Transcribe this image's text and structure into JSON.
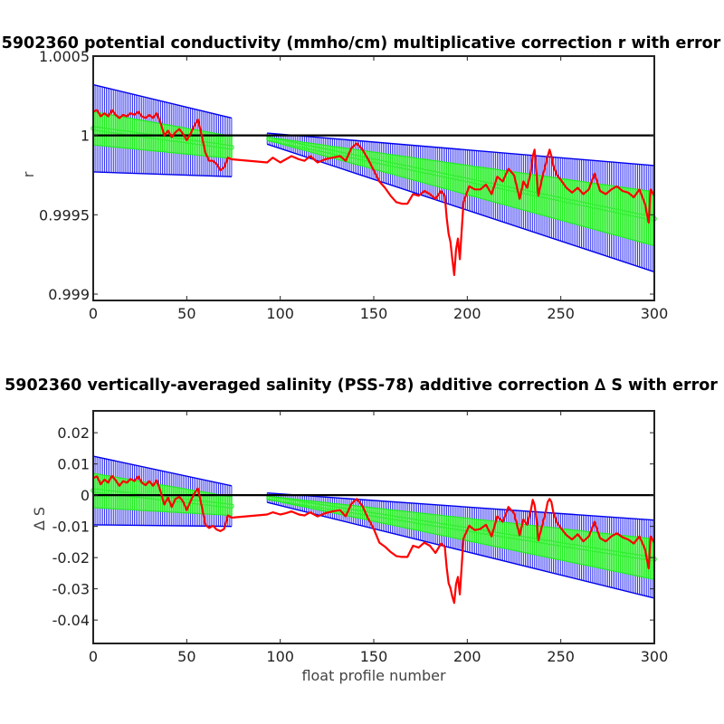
{
  "chart_data": [
    {
      "type": "line",
      "title": "5902360 potential conductivity (mmho/cm) multiplicative correction r with error",
      "xlabel": "",
      "ylabel": "r",
      "xlim": [
        0,
        300
      ],
      "ylim": [
        0.99896,
        1.0005
      ],
      "x_ticks": [
        "0",
        "50",
        "100",
        "150",
        "200",
        "250",
        "300"
      ],
      "y_ticks": [
        {
          "value": 1.0005,
          "label": "1.0005"
        },
        {
          "value": 1.0,
          "label": "1"
        },
        {
          "value": 0.9995,
          "label": "0.9995"
        },
        {
          "value": 0.999,
          "label": "0.999"
        }
      ],
      "reference_line": 1.0,
      "error_bands": [
        {
          "name": "outer",
          "color": "#0000ee",
          "segments": [
            {
              "x": [
                0,
                74
              ],
              "center": [
                1.000045,
                0.999925
              ],
              "halfwidth": [
                0.000275,
                0.000185
              ]
            },
            {
              "x": [
                93,
                300
              ],
              "center": [
                0.99998,
                0.999475
              ],
              "halfwidth": [
                3.5e-05,
                0.000335
              ]
            }
          ]
        },
        {
          "name": "inner",
          "color": "#22ee22",
          "segments": [
            {
              "x": [
                0,
                74
              ],
              "center": [
                1.000045,
                0.999925
              ],
              "halfwidth": [
                0.000105,
                7e-05
              ]
            },
            {
              "x": [
                93,
                300
              ],
              "center": [
                0.99998,
                0.999475
              ],
              "halfwidth": [
                1e-05,
                0.00017
              ]
            }
          ]
        }
      ],
      "series": [
        {
          "color": "#ff0000",
          "x": [
            0,
            2,
            4,
            6,
            8,
            10,
            12,
            14,
            16,
            18,
            20,
            22,
            24,
            26,
            28,
            30,
            32,
            34,
            36,
            38,
            40,
            42,
            44,
            46,
            48,
            50,
            52,
            54,
            56,
            58,
            60,
            62,
            64,
            66,
            68,
            70,
            72,
            74,
            93,
            96,
            100,
            103,
            106,
            110,
            113,
            116,
            120,
            124,
            128,
            132,
            135,
            138,
            141,
            144,
            147,
            150,
            153,
            156,
            159,
            162,
            165,
            168,
            171,
            174,
            177,
            180,
            183,
            186,
            188,
            189,
            190,
            191,
            192,
            193,
            194,
            195,
            196,
            198,
            201,
            204,
            207,
            210,
            213,
            216,
            219,
            222,
            225,
            228,
            230,
            232,
            234,
            235,
            236,
            237,
            238,
            240,
            242,
            243,
            244,
            245,
            246,
            248,
            250,
            253,
            256,
            259,
            262,
            265,
            268,
            271,
            274,
            277,
            280,
            283,
            286,
            289,
            292,
            295,
            297,
            298,
            300
          ],
          "y": [
            1.00015,
            1.00016,
            1.00012,
            1.00014,
            1.00012,
            1.00016,
            1.00013,
            1.00011,
            1.00013,
            1.00012,
            1.00014,
            1.00013,
            1.00015,
            1.00012,
            1.00011,
            1.00013,
            1.00011,
            1.00014,
            1.00008,
            1.0,
            1.00003,
            0.99999,
            1.00002,
            1.00004,
            1.00001,
            0.99997,
            1.00001,
            1.00006,
            1.0001,
            1.0,
            0.99989,
            0.99984,
            0.99984,
            0.99982,
            0.99978,
            0.9998,
            0.99986,
            0.99985,
            0.99983,
            0.99986,
            0.99983,
            0.99985,
            0.99987,
            0.99985,
            0.99984,
            0.99987,
            0.99983,
            0.99985,
            0.99986,
            0.99987,
            0.99984,
            0.99992,
            0.99995,
            0.99991,
            0.99985,
            0.99978,
            0.99971,
            0.99967,
            0.99962,
            0.99958,
            0.99957,
            0.99957,
            0.99963,
            0.99962,
            0.99965,
            0.99963,
            0.9996,
            0.99965,
            0.99962,
            0.99948,
            0.99938,
            0.99933,
            0.99922,
            0.99912,
            0.99928,
            0.99935,
            0.99922,
            0.99958,
            0.99968,
            0.99966,
            0.99966,
            0.99969,
            0.99963,
            0.99974,
            0.99971,
            0.99979,
            0.99975,
            0.9996,
            0.99971,
            0.99967,
            0.99977,
            0.99987,
            0.99991,
            0.99976,
            0.99962,
            0.99973,
            0.99982,
            0.99987,
            0.99991,
            0.99987,
            0.99981,
            0.99975,
            0.99972,
            0.99967,
            0.99964,
            0.99967,
            0.99963,
            0.99966,
            0.99976,
            0.99965,
            0.99963,
            0.99966,
            0.99968,
            0.99965,
            0.99964,
            0.99961,
            0.99966,
            0.99957,
            0.99945,
            0.99966,
            0.99962
          ]
        }
      ]
    },
    {
      "type": "line",
      "title": "5902360 vertically-averaged salinity (PSS-78) additive correction ∆ S with error",
      "xlabel": "float profile number",
      "ylabel": "∆ S",
      "xlim": [
        0,
        300
      ],
      "ylim": [
        -0.0475,
        0.027
      ],
      "x_ticks": [
        "0",
        "50",
        "100",
        "150",
        "200",
        "250",
        "300"
      ],
      "y_ticks": [
        {
          "value": 0.02,
          "label": "0.02"
        },
        {
          "value": 0.01,
          "label": "0.01"
        },
        {
          "value": 0.0,
          "label": "0"
        },
        {
          "value": -0.01,
          "label": "-0.01"
        },
        {
          "value": -0.02,
          "label": "-0.02"
        },
        {
          "value": -0.03,
          "label": "-0.03"
        },
        {
          "value": -0.04,
          "label": "-0.04"
        }
      ],
      "reference_line": 0.0,
      "error_bands": [
        {
          "name": "outer",
          "color": "#0000ee",
          "segments": [
            {
              "x": [
                0,
                74
              ],
              "center": [
                0.0015,
                -0.0035
              ],
              "halfwidth": [
                0.011,
                0.0065
              ]
            },
            {
              "x": [
                93,
                300
              ],
              "center": [
                -0.0008,
                -0.0205
              ],
              "halfwidth": [
                0.0015,
                0.0125
              ]
            }
          ]
        },
        {
          "name": "inner",
          "color": "#22ee22",
          "segments": [
            {
              "x": [
                0,
                74
              ],
              "center": [
                0.0015,
                -0.0035
              ],
              "halfwidth": [
                0.0055,
                0.003
              ]
            },
            {
              "x": [
                93,
                300
              ],
              "center": [
                -0.0008,
                -0.0205
              ],
              "halfwidth": [
                0.0005,
                0.0065
              ]
            }
          ]
        }
      ],
      "series": [
        {
          "color": "#ff0000",
          "x": [
            0,
            2,
            4,
            6,
            8,
            10,
            12,
            14,
            16,
            18,
            20,
            22,
            24,
            26,
            28,
            30,
            32,
            34,
            36,
            38,
            40,
            42,
            44,
            46,
            48,
            50,
            52,
            54,
            56,
            58,
            60,
            62,
            64,
            66,
            68,
            70,
            72,
            74,
            93,
            96,
            100,
            103,
            106,
            110,
            113,
            116,
            120,
            124,
            128,
            132,
            135,
            138,
            141,
            144,
            147,
            150,
            153,
            156,
            159,
            162,
            165,
            168,
            171,
            174,
            177,
            180,
            183,
            186,
            188,
            189,
            190,
            191,
            192,
            193,
            194,
            195,
            196,
            198,
            201,
            204,
            207,
            210,
            213,
            216,
            219,
            222,
            225,
            228,
            230,
            232,
            234,
            235,
            236,
            237,
            238,
            240,
            242,
            243,
            244,
            245,
            246,
            248,
            250,
            253,
            256,
            259,
            262,
            265,
            268,
            271,
            274,
            277,
            280,
            283,
            286,
            289,
            292,
            295,
            297,
            298,
            300
          ],
          "y": [
            0.0055,
            0.006,
            0.0035,
            0.005,
            0.004,
            0.0062,
            0.0048,
            0.003,
            0.0045,
            0.004,
            0.0052,
            0.0045,
            0.006,
            0.004,
            0.0032,
            0.0045,
            0.003,
            0.0048,
            0.0012,
            -0.003,
            -0.0008,
            -0.0038,
            -0.0012,
            -0.0005,
            -0.002,
            -0.0048,
            -0.002,
            0.0005,
            0.0022,
            -0.0035,
            -0.0095,
            -0.0105,
            -0.0098,
            -0.011,
            -0.0115,
            -0.0108,
            -0.0065,
            -0.0072,
            -0.0062,
            -0.0055,
            -0.0062,
            -0.0058,
            -0.0052,
            -0.0062,
            -0.0065,
            -0.0055,
            -0.0068,
            -0.0058,
            -0.0052,
            -0.0048,
            -0.0068,
            -0.0028,
            -0.0012,
            -0.0035,
            -0.0075,
            -0.0108,
            -0.0152,
            -0.0165,
            -0.0182,
            -0.0195,
            -0.0198,
            -0.0198,
            -0.0162,
            -0.0168,
            -0.0152,
            -0.0162,
            -0.0185,
            -0.0155,
            -0.0165,
            -0.0232,
            -0.0282,
            -0.0298,
            -0.0325,
            -0.0345,
            -0.0285,
            -0.0262,
            -0.0318,
            -0.0138,
            -0.0098,
            -0.0112,
            -0.0108,
            -0.0095,
            -0.0132,
            -0.0068,
            -0.0085,
            -0.0038,
            -0.0058,
            -0.0128,
            -0.0078,
            -0.0095,
            -0.0048,
            -0.0015,
            -0.0032,
            -0.0075,
            -0.0145,
            -0.0098,
            -0.0052,
            -0.0022,
            -0.0012,
            -0.0022,
            -0.0055,
            -0.0088,
            -0.0105,
            -0.0128,
            -0.0142,
            -0.0125,
            -0.0148,
            -0.0132,
            -0.0085,
            -0.0138,
            -0.0148,
            -0.0132,
            -0.0122,
            -0.0135,
            -0.0142,
            -0.0155,
            -0.0132,
            -0.0172,
            -0.0235,
            -0.0132,
            -0.0152
          ]
        }
      ]
    }
  ]
}
